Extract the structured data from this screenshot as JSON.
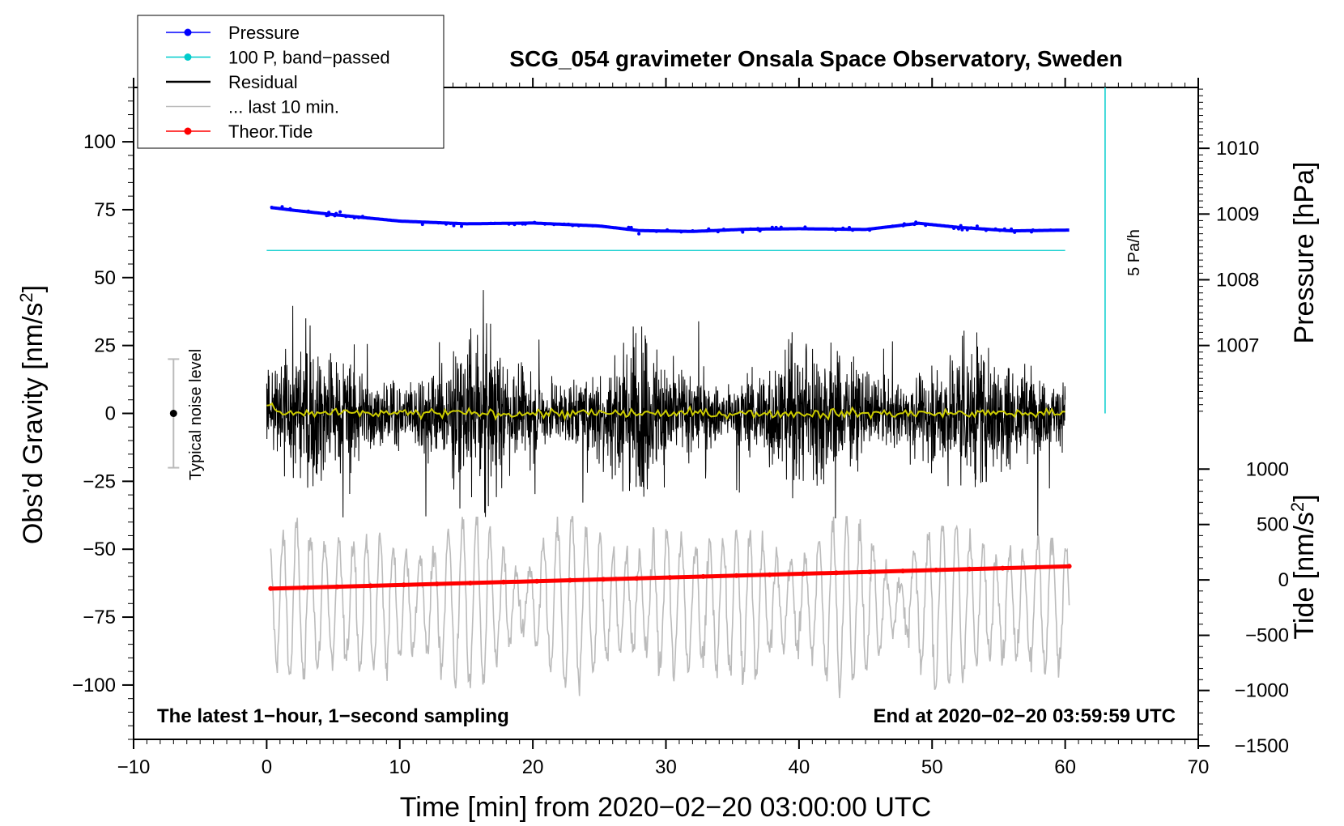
{
  "chart_data": {
    "type": "line",
    "title": "SCG_054 gravimeter Onsala Space Observatory, Sweden",
    "xlabel": "Time [min] from 2020−02−20 03:00:00 UTC",
    "ylabel_left": "Obs’d Gravity [nm/s",
    "ylabel_left_sup": "2",
    "ylabel_left_end": "]",
    "ylabel_right_pressure": "Pressure [hPa]",
    "ylabel_right_tide": "Tide [nm/s",
    "ylabel_right_tide_sup": "2",
    "ylabel_right_tide_end": "]",
    "xlim": [
      -10,
      70
    ],
    "ylim": [
      -120,
      120
    ],
    "x_ticks": [
      "−10",
      "0",
      "10",
      "20",
      "30",
      "40",
      "50",
      "60",
      "70"
    ],
    "x_tick_values": [
      -10,
      0,
      10,
      20,
      30,
      40,
      50,
      60,
      70
    ],
    "y_ticks": [
      "−100",
      "−75",
      "−50",
      "−25",
      "0",
      "25",
      "50",
      "75",
      "100"
    ],
    "y_tick_values": [
      -100,
      -75,
      -50,
      -25,
      0,
      25,
      50,
      75,
      100
    ],
    "pressure_axis": {
      "ticks": [
        "1007",
        "1008",
        "1009",
        "1010"
      ],
      "tick_values": [
        1007,
        1008,
        1009,
        1010
      ],
      "gravity_equiv": [
        25,
        49.2,
        73.4,
        97.6
      ]
    },
    "tide_axis": {
      "ticks": [
        "1000",
        "500",
        "0",
        "−500",
        "−1000",
        "−1500"
      ],
      "tick_values": [
        1000,
        500,
        0,
        -500,
        -1000,
        -1500
      ],
      "gravity_equiv": [
        -20.5,
        -40.9,
        -61.3,
        -81.7,
        -102,
        -122.4
      ]
    },
    "legend": [
      {
        "label": "Pressure",
        "color": "#0000ff",
        "marker": true
      },
      {
        "label": "100 P, band−passed",
        "color": "#00cccc",
        "marker": true
      },
      {
        "label": "Residual",
        "color": "#000000",
        "marker": false
      },
      {
        "label": "... last 10 min.",
        "color": "#bbbbbb",
        "marker": false
      },
      {
        "label": "Theor.Tide",
        "color": "#ff0000",
        "marker": true
      }
    ],
    "series": [
      {
        "name": "Pressure",
        "color": "#0000ff",
        "x": [
          0.3,
          2,
          5,
          10,
          15,
          20,
          25,
          28,
          32,
          36,
          40,
          45,
          49,
          52,
          56,
          60.3
        ],
        "values": [
          75.8,
          74.8,
          73.2,
          70.8,
          69.8,
          70.1,
          69.0,
          67.3,
          67.0,
          67.8,
          68.0,
          67.7,
          70.0,
          68.5,
          67.2,
          67.5
        ]
      },
      {
        "name": "Theor.Tide",
        "color": "#ff0000",
        "x": [
          0.3,
          60.3
        ],
        "values": [
          -64.5,
          -56.3
        ]
      },
      {
        "name": "100 P, band-passed",
        "color": "#00cccc",
        "x": [
          0,
          60
        ],
        "values": [
          60,
          60
        ]
      },
      {
        "name": "Residual (smoothed)",
        "color": "#cccc00",
        "x": [
          0,
          60
        ],
        "values": [
          0,
          0
        ]
      }
    ],
    "residual_amplitude": 20,
    "last10_amplitude": 30,
    "last10_offset": -70,
    "noise_level": {
      "label": "Typical noise level",
      "x": -7,
      "center": 0,
      "low": -20,
      "high": 20
    },
    "scale_bar": {
      "label": "5 Pa/h",
      "x": 63,
      "y_low": 0,
      "y_high": 120
    },
    "note_left": "The latest 1−hour, 1−second sampling",
    "note_right": "End at 2020−02−20 03:59:59 UTC"
  }
}
